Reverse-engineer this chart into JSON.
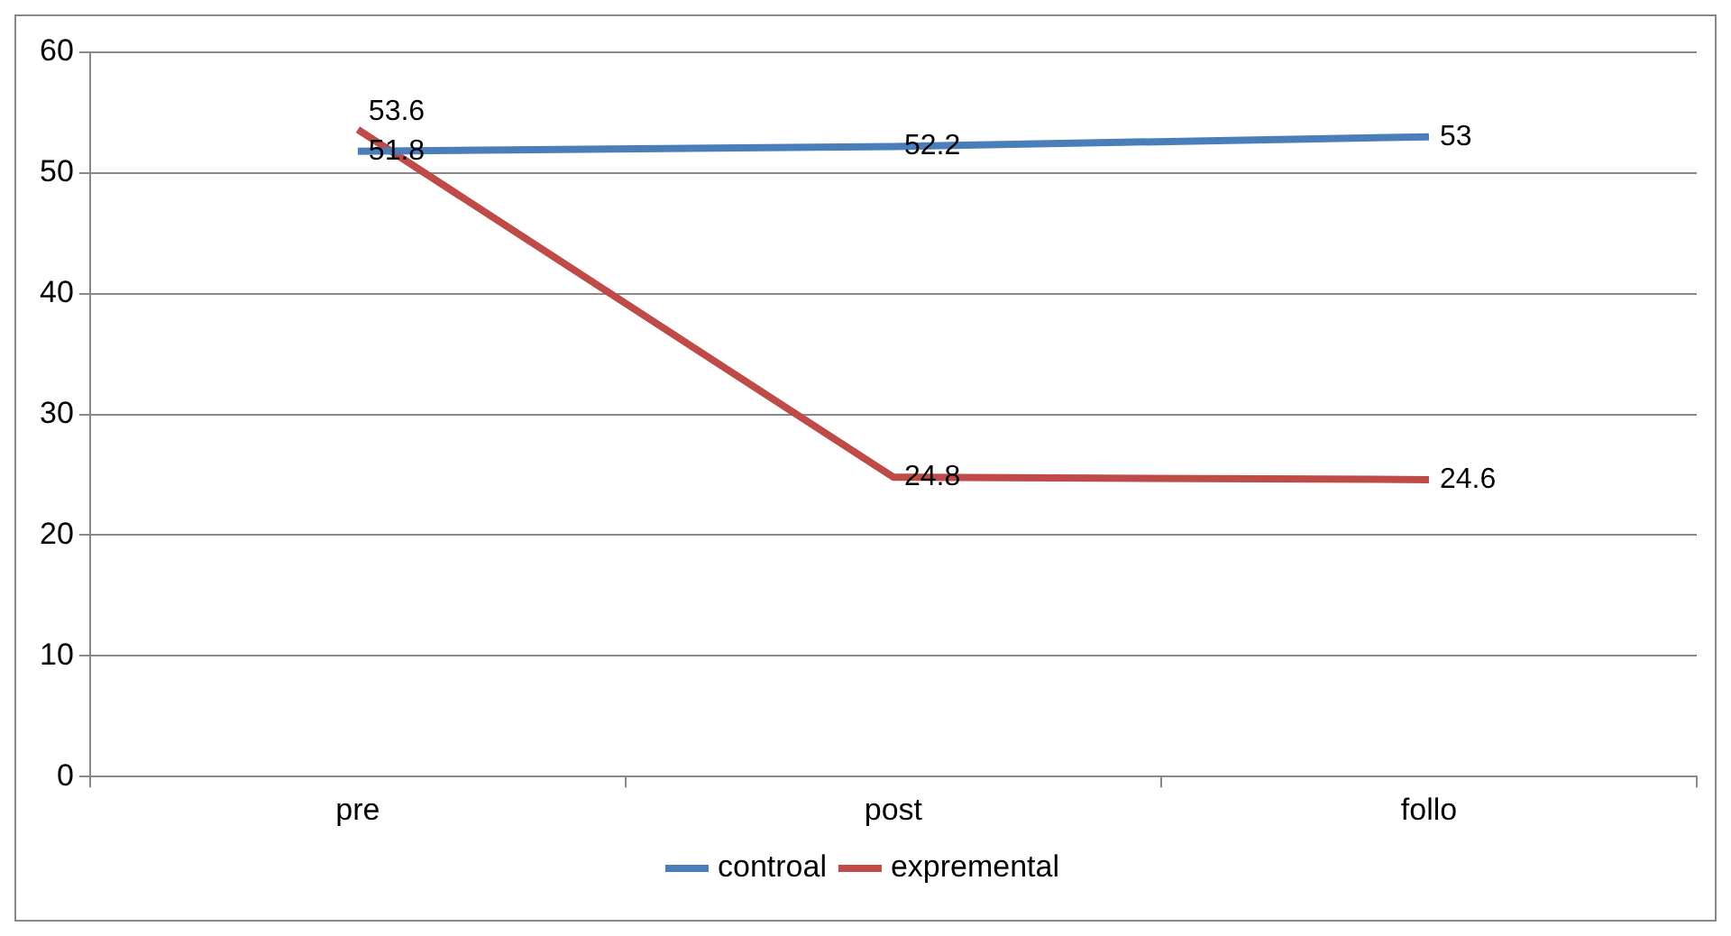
{
  "chart_data": {
    "type": "line",
    "categories": [
      "pre",
      "post",
      "follo"
    ],
    "series": [
      {
        "name": "controal",
        "color": "#4a7ebb",
        "values": [
          51.8,
          52.2,
          53
        ]
      },
      {
        "name": "expremental",
        "color": "#be4b48",
        "values": [
          53.6,
          24.8,
          24.6
        ]
      }
    ],
    "ylim": [
      0,
      60
    ],
    "yticks": [
      0,
      10,
      20,
      30,
      40,
      50,
      60
    ],
    "grid": "y",
    "legend": "bottom",
    "data_labels": true
  }
}
